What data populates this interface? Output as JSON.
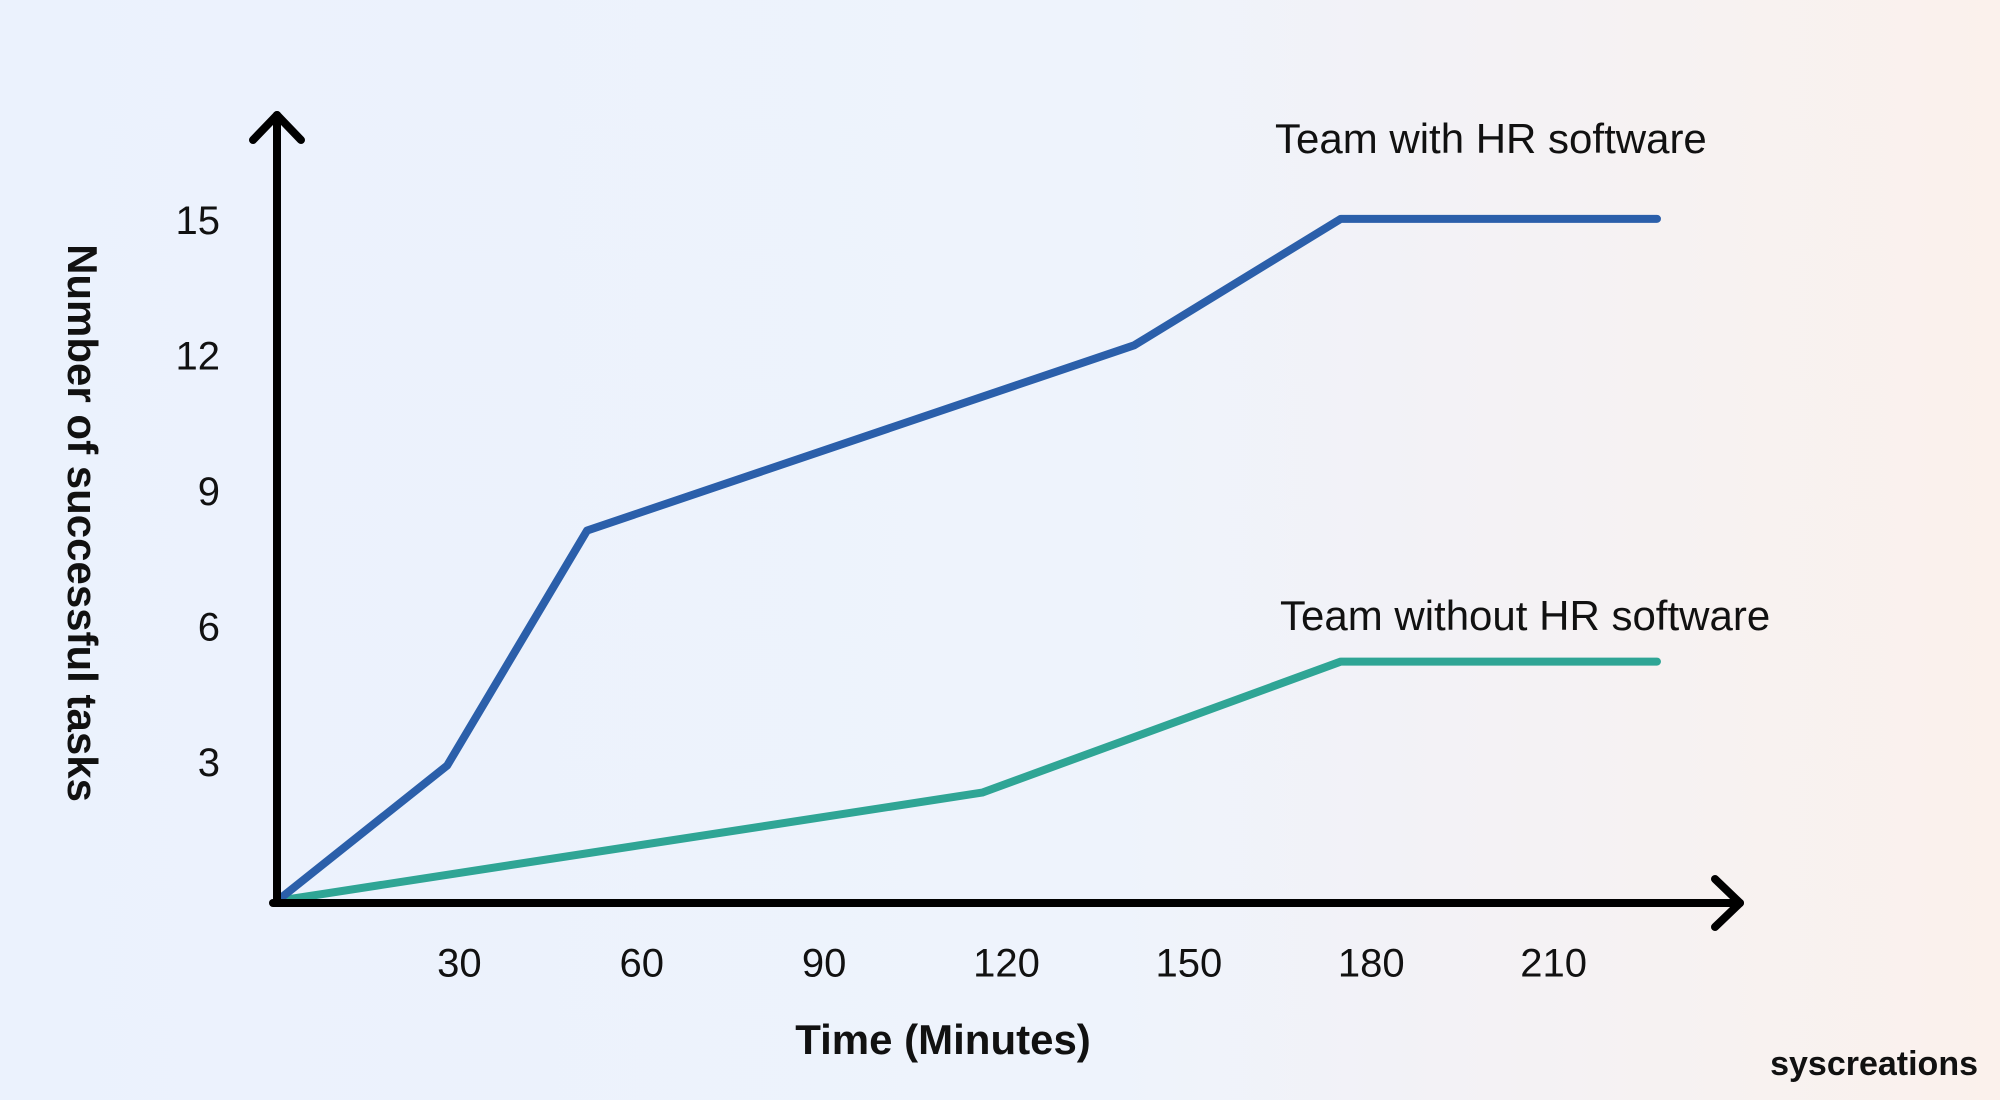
{
  "chart_data": {
    "type": "line",
    "x_label": "Time (Minutes)",
    "y_label": "Number of successful tasks",
    "xlim": [
      0,
      240
    ],
    "xticks": [
      30,
      60,
      90,
      120,
      150,
      180,
      210
    ],
    "ylim": [
      0,
      17
    ],
    "yticks": [
      3,
      6,
      9,
      12,
      15
    ],
    "grid": false,
    "series": [
      {
        "name": "Team with HR software",
        "color": "#2b5faa",
        "x": [
          0,
          28,
          51,
          141,
          175,
          227
        ],
        "values": [
          0,
          3,
          8.2,
          12.3,
          15.1,
          15.1
        ]
      },
      {
        "name": "Team without HR software",
        "color": "#2fa595",
        "x": [
          0,
          116,
          175,
          227
        ],
        "values": [
          0,
          2.4,
          5.3,
          5.3
        ]
      }
    ]
  },
  "brand": "syscreations"
}
